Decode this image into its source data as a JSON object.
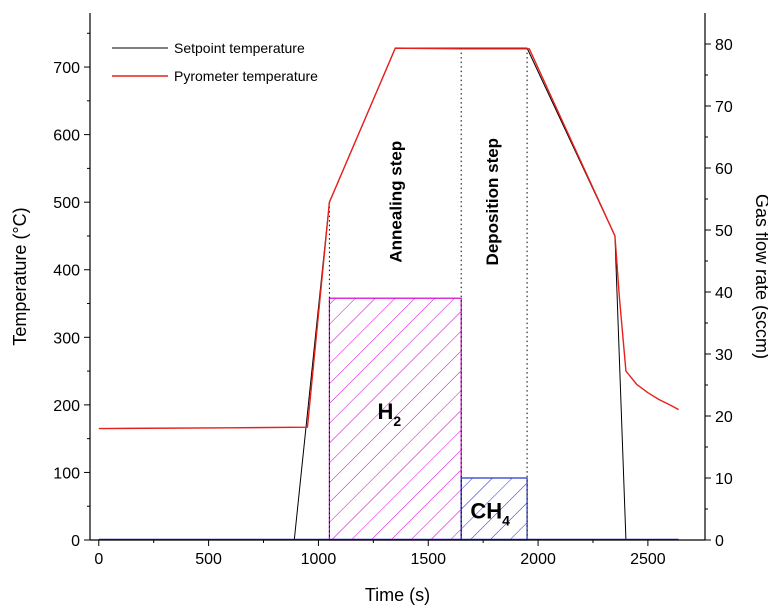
{
  "chart_data": {
    "type": "line",
    "xlabel": "Time (s)",
    "ylabel": "Temperature (°C)",
    "y2label": "Gas flow rate (sccm)",
    "xlim": [
      -40,
      2760
    ],
    "ylim": [
      0,
      780
    ],
    "y2lim": [
      0,
      85
    ],
    "xticks": [
      0,
      500,
      1000,
      1500,
      2000,
      2500
    ],
    "yticks": [
      0,
      100,
      200,
      300,
      400,
      500,
      600,
      700
    ],
    "y2ticks": [
      0,
      10,
      20,
      30,
      40,
      50,
      60,
      70,
      80
    ],
    "legend_position": "top-left",
    "grid": false,
    "series": [
      {
        "name": "Setpoint temperature",
        "color": "#000000",
        "axis": "left",
        "x": [
          0,
          890,
          1050,
          1350,
          1650,
          1950,
          2350,
          2400,
          2640
        ],
        "y": [
          0,
          0,
          500,
          728,
          728,
          728,
          450,
          0,
          0
        ]
      },
      {
        "name": "Pyrometer temperature",
        "color": "#e8201c",
        "axis": "left",
        "x": [
          0,
          600,
          950,
          1050,
          1350,
          1650,
          1960,
          2350,
          2370,
          2400,
          2450,
          2500,
          2550,
          2600,
          2640
        ],
        "y": [
          165,
          166,
          167,
          500,
          728,
          727,
          727,
          450,
          360,
          250,
          230,
          218,
          208,
          200,
          193
        ]
      }
    ],
    "gas_bars": [
      {
        "label": "H",
        "subscript": "2",
        "x_start": 1050,
        "x_end": 1650,
        "flow": 39,
        "color": "#d400d4"
      },
      {
        "label": "CH",
        "subscript": "4",
        "x_start": 1650,
        "x_end": 1950,
        "flow": 10,
        "color": "#2030c8"
      }
    ],
    "markers": [
      {
        "x": 1050,
        "label": ""
      },
      {
        "x": 1650,
        "label": ""
      },
      {
        "x": 1950,
        "label": ""
      }
    ],
    "annotations": [
      {
        "text": "Annealing step",
        "x": 1350,
        "y": 480
      },
      {
        "text": "Deposition step",
        "x": 1790,
        "y": 480
      }
    ]
  }
}
